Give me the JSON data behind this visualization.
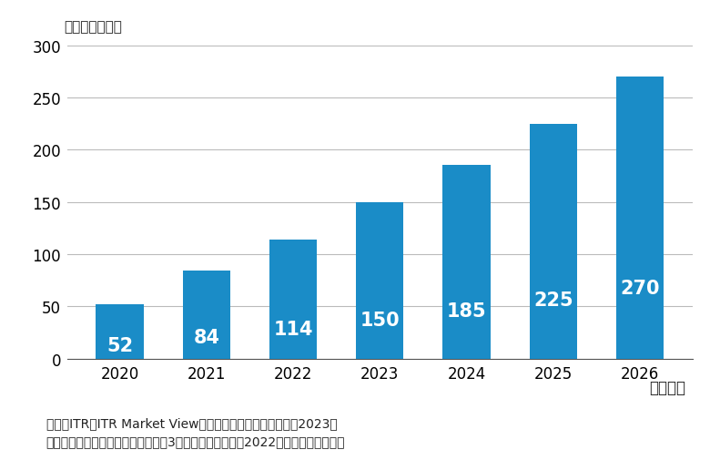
{
  "categories": [
    "2020",
    "2021",
    "2022",
    "2023",
    "2024",
    "2025",
    "2026"
  ],
  "values": [
    52,
    84,
    114,
    150,
    185,
    225,
    270
  ],
  "bar_color": "#1a8cc7",
  "ylabel_unit": "（単位：億円）",
  "xlabel_label": "（年度）",
  "ylim": [
    0,
    300
  ],
  "yticks": [
    0,
    50,
    100,
    150,
    200,
    250,
    300
  ],
  "label_color": "#ffffff",
  "label_fontsize": 15,
  "tick_fontsize": 12,
  "unit_fontsize": 11,
  "footnote1": "出典：ITR『ITR Market View：人事・給与・就業管理市場2023』",
  "footnote2": "＊ベンダーの売上金額を対象とし、3月期ベースで換算。2022年度以降は予測値。",
  "footnote_fontsize": 10,
  "background_color": "#ffffff",
  "grid_color": "#bbbbbb"
}
